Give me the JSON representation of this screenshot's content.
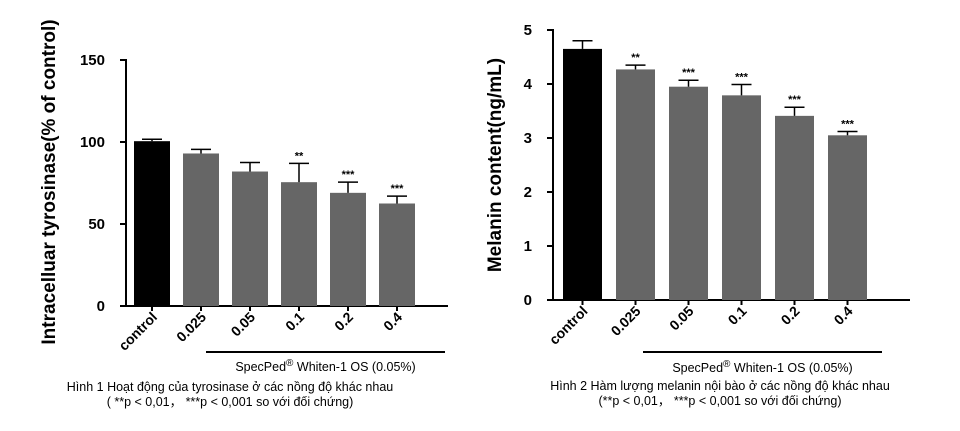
{
  "chart_data": [
    {
      "type": "bar",
      "title": "",
      "xlabel": "",
      "ylabel": "Intracelluar tyrosinase(% of control)",
      "ylim": [
        0,
        150
      ],
      "yticks": [
        0,
        50,
        100,
        150
      ],
      "categories": [
        "control",
        "0.025",
        "0.05",
        "0.1",
        "0.2",
        "0.4"
      ],
      "values": [
        100.5,
        93,
        82,
        75.5,
        69,
        62.5
      ],
      "errors": [
        1.2,
        2.5,
        5.5,
        11.5,
        6.5,
        4.5
      ],
      "significance": [
        "",
        "",
        "",
        "**",
        "***",
        "***"
      ],
      "bar_colors": [
        "#000000",
        "#666666",
        "#666666",
        "#666666",
        "#666666",
        "#666666"
      ],
      "group_label_prefix": "SpecPed",
      "group_label_superscript": "®",
      "group_label_suffix": " Whiten-1 OS (0.05%)",
      "caption": "Hình 1 Hoạt động của tyrosinase ở các nồng độ khác nhau",
      "caption_note": "( **p < 0,01，  ***p < 0,001 so với đối chứng)"
    },
    {
      "type": "bar",
      "title": "",
      "xlabel": "",
      "ylabel": "Melanin content(ng/mL)",
      "ylim": [
        0,
        5
      ],
      "yticks": [
        0,
        1,
        2,
        3,
        4,
        5
      ],
      "categories": [
        "control",
        "0.025",
        "0.05",
        "0.1",
        "0.2",
        "0.4"
      ],
      "values": [
        4.65,
        4.27,
        3.95,
        3.79,
        3.41,
        3.05
      ],
      "errors": [
        0.15,
        0.08,
        0.12,
        0.2,
        0.16,
        0.07
      ],
      "significance": [
        "",
        "**",
        "***",
        "***",
        "***",
        "***"
      ],
      "bar_colors": [
        "#000000",
        "#666666",
        "#666666",
        "#666666",
        "#666666",
        "#666666"
      ],
      "group_label_prefix": "SpecPed",
      "group_label_superscript": "®",
      "group_label_suffix": " Whiten-1 OS (0.05%)",
      "caption": "Hình 2 Hàm lượng melanin nội bào ở các nồng độ khác nhau",
      "caption_note": "(**p < 0,01，  ***p < 0,001 so với đối chứng)"
    }
  ]
}
